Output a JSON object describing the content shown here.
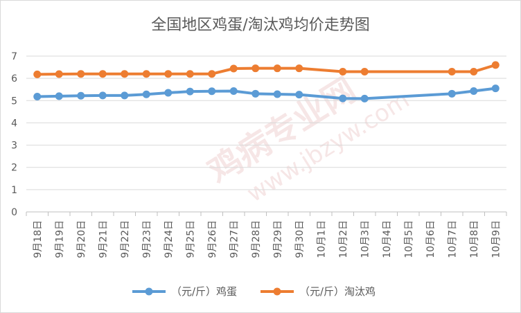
{
  "chart_data": {
    "type": "line",
    "title": "全国地区鸡蛋/淘汰鸡均价走势图",
    "categories": [
      "9月18日",
      "9月19日",
      "9月20日",
      "9月21日",
      "9月22日",
      "9月23日",
      "9月24日",
      "9月25日",
      "9月26日",
      "9月27日",
      "9月28日",
      "9月29日",
      "9月30日",
      "10月1日",
      "10月2日",
      "10月3日",
      "10月4日",
      "10月5日",
      "10月6日",
      "10月7日",
      "10月8日",
      "10月9日"
    ],
    "series": [
      {
        "name": "（元/斤）鸡蛋",
        "color": "#5b9bd5",
        "values": [
          5.18,
          5.2,
          5.22,
          5.23,
          5.23,
          5.28,
          5.35,
          5.41,
          5.42,
          5.43,
          5.31,
          5.29,
          5.27,
          null,
          5.1,
          5.09,
          null,
          null,
          null,
          5.31,
          5.43,
          5.55
        ]
      },
      {
        "name": "（元/斤）淘汰鸡",
        "color": "#ed7d31",
        "values": [
          6.18,
          6.19,
          6.2,
          6.2,
          6.2,
          6.2,
          6.2,
          6.2,
          6.2,
          6.44,
          6.45,
          6.45,
          6.45,
          null,
          6.3,
          6.3,
          null,
          null,
          null,
          6.3,
          6.3,
          6.6
        ]
      }
    ],
    "yticks": [
      "0",
      "1",
      "2",
      "3",
      "4",
      "5",
      "6",
      "7"
    ],
    "ylim": [
      0,
      7
    ],
    "grid": true,
    "legend": "bottom"
  },
  "watermark": {
    "text1": "鸡病专业网",
    "text2": "www.jbzyw.com",
    "text3": "鸡病专业网"
  }
}
